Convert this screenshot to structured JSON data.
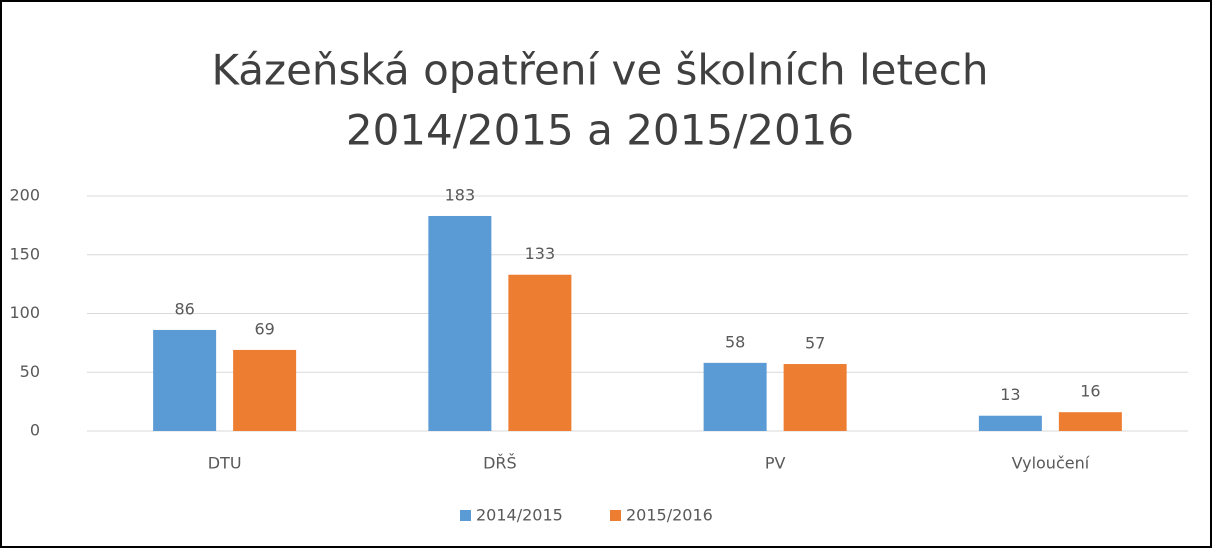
{
  "chart_data": {
    "type": "bar",
    "title": [
      "Kázeňská opatření ve školních letech",
      "2014/2015 a 2015/2016"
    ],
    "categories": [
      "DTU",
      "DŘŠ",
      "PV",
      "Vyloučení"
    ],
    "series": [
      {
        "name": "2014/2015",
        "color": "#5b9bd5",
        "values": [
          86,
          183,
          58,
          13
        ]
      },
      {
        "name": "2015/2016",
        "color": "#ed7d31",
        "values": [
          69,
          133,
          57,
          16
        ]
      }
    ],
    "ylim": [
      0,
      200
    ],
    "yticks": [
      0,
      50,
      100,
      150,
      200
    ],
    "grid": true,
    "legend": "bottom"
  }
}
